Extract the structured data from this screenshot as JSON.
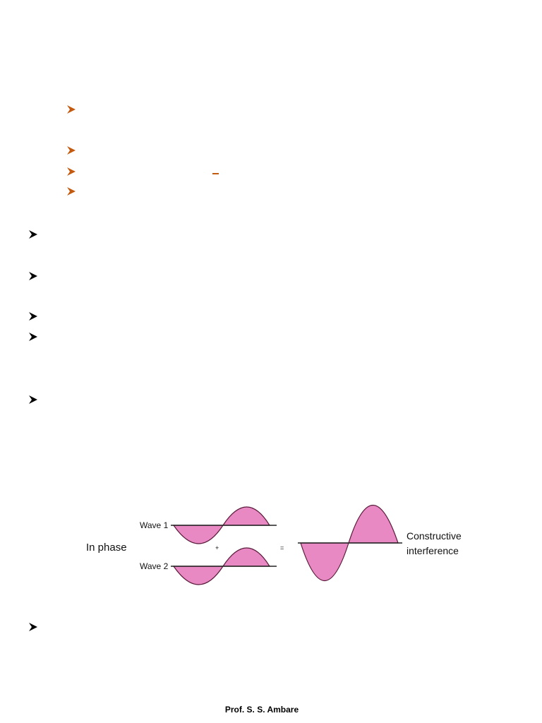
{
  "colors": {
    "sub_bullet": "#c25a10",
    "main_bullet": "#000000",
    "wave_fill": "#e889c3",
    "wave_stroke": "#5a1a3a"
  },
  "icons": {
    "sub_bullet": "arrowhead-bullet-icon",
    "main_bullet": "arrowhead-bullet-icon"
  },
  "figure": {
    "wave1_label": "Wave 1",
    "wave2_label": "Wave 2",
    "phase_label": "In phase",
    "plus_sign": "+",
    "equals_sign": "=",
    "result_line1": "Constructive",
    "result_line2": "interference"
  },
  "footer": {
    "author": "Prof. S. S. Ambare"
  }
}
